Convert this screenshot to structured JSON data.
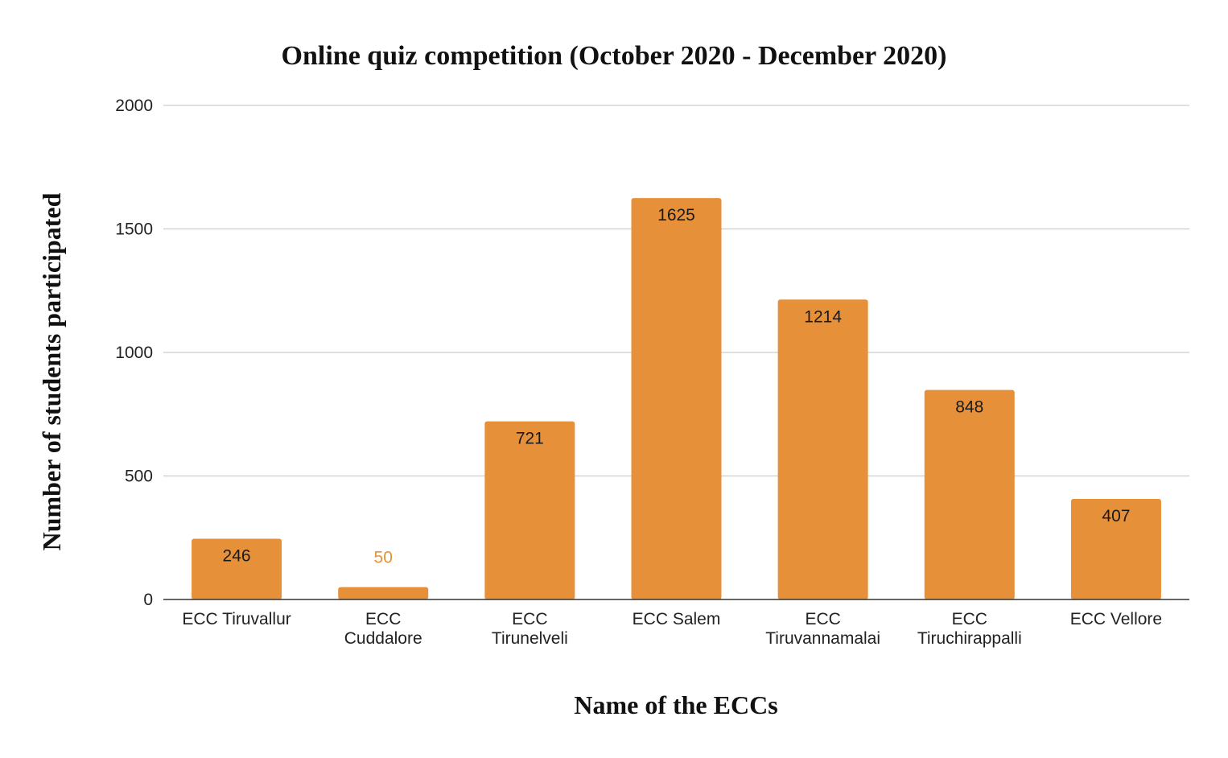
{
  "chart_data": {
    "type": "bar",
    "title": "Online quiz competition (October 2020 - December 2020)",
    "xlabel": "Name of the ECCs",
    "ylabel": "Number of students participated",
    "categories": [
      [
        "ECC Tiruvallur"
      ],
      [
        "ECC",
        "Cuddalore"
      ],
      [
        "ECC",
        "Tirunelveli"
      ],
      [
        "ECC Salem"
      ],
      [
        "ECC",
        "Tiruvannamalai"
      ],
      [
        "ECC",
        "Tiruchirappalli"
      ],
      [
        "ECC Vellore"
      ]
    ],
    "values": [
      246,
      50,
      721,
      1625,
      1214,
      848,
      407
    ],
    "ylim": [
      0,
      2000
    ],
    "yticks": [
      0,
      500,
      1000,
      1500,
      2000
    ],
    "grid": true,
    "legend": "none",
    "bar_color": "#e6913a",
    "inside_label_color": "#1a1a1a",
    "outside_label_color": "#e6913a"
  }
}
